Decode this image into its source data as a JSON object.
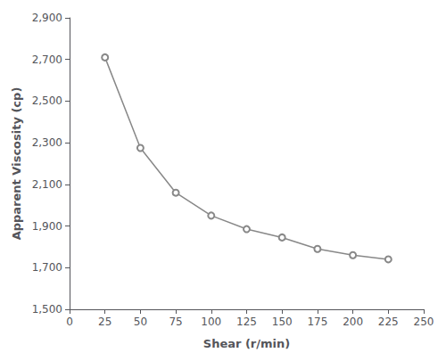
{
  "chart_data": {
    "type": "line",
    "x": [
      25,
      50,
      75,
      100,
      125,
      150,
      175,
      200,
      225
    ],
    "values": [
      2710,
      2275,
      2060,
      1950,
      1885,
      1845,
      1790,
      1760,
      1740
    ],
    "xlabel": "Shear (r/min)",
    "ylabel": "Apparent Viscosity (cp)",
    "xlim": [
      0,
      250
    ],
    "ylim": [
      1500,
      2900
    ],
    "xticks": [
      0,
      25,
      50,
      75,
      100,
      125,
      150,
      175,
      200,
      225,
      250
    ],
    "yticks": [
      1500,
      1700,
      1900,
      2100,
      2300,
      2500,
      2700,
      2900
    ],
    "color": "#888888",
    "marker": "circle",
    "grid": false
  }
}
